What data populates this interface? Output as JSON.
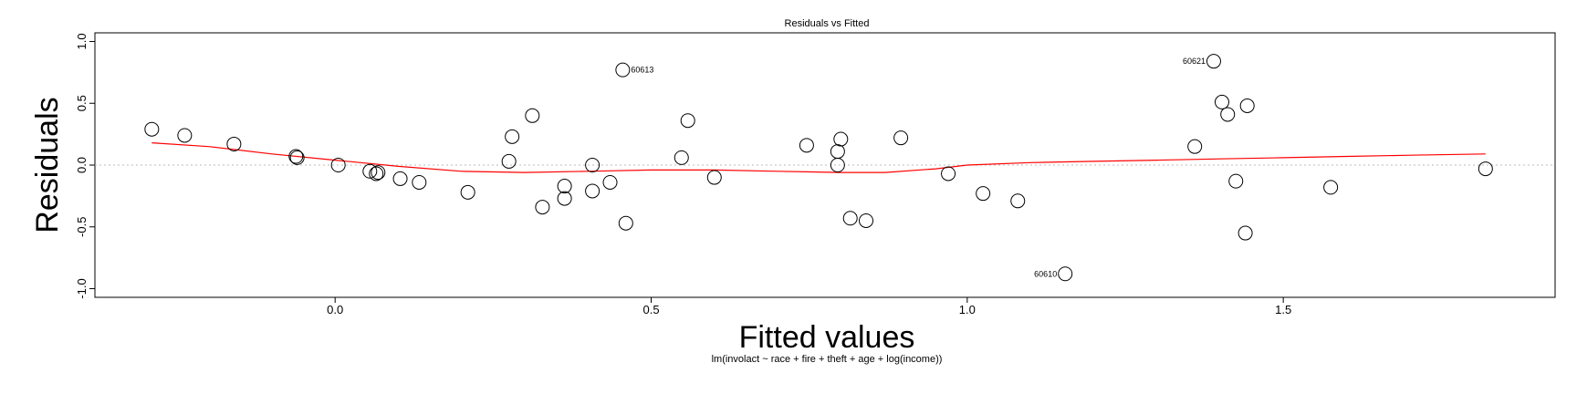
{
  "chart_data": {
    "type": "scatter",
    "title": "Residuals vs Fitted",
    "xlabel": "Fitted values",
    "ylabel": "Residuals",
    "subtitle": "lm(involact ~ race + fire + theft + age + log(income))",
    "xlim": [
      -0.38,
      1.93
    ],
    "ylim": [
      -1.07,
      1.07
    ],
    "x_ticks": [
      0.0,
      0.5,
      1.0,
      1.5
    ],
    "x_tick_labels": [
      "0.0",
      "0.5",
      "1.0",
      "1.5"
    ],
    "y_ticks": [
      -1.0,
      -0.5,
      0.0,
      0.5,
      1.0
    ],
    "y_tick_labels": [
      "-1.0",
      "-0.5",
      "0.0",
      "0.5",
      "1.0"
    ],
    "reference_line_y": 0,
    "grid": false,
    "legend": "none",
    "colors": {
      "points": "#000000",
      "smoother": "#ff0000",
      "reference": "#bbbbbb"
    },
    "points": [
      {
        "x": -0.29,
        "y": 0.29
      },
      {
        "x": -0.238,
        "y": 0.24
      },
      {
        "x": -0.16,
        "y": 0.17
      },
      {
        "x": -0.062,
        "y": 0.07
      },
      {
        "x": -0.06,
        "y": 0.06
      },
      {
        "x": 0.005,
        "y": 0.0
      },
      {
        "x": 0.055,
        "y": -0.05
      },
      {
        "x": 0.065,
        "y": -0.07
      },
      {
        "x": 0.068,
        "y": -0.06
      },
      {
        "x": 0.103,
        "y": -0.11
      },
      {
        "x": 0.133,
        "y": -0.14
      },
      {
        "x": 0.21,
        "y": -0.22
      },
      {
        "x": 0.275,
        "y": 0.03
      },
      {
        "x": 0.28,
        "y": 0.23
      },
      {
        "x": 0.312,
        "y": 0.4
      },
      {
        "x": 0.328,
        "y": -0.34
      },
      {
        "x": 0.363,
        "y": -0.17
      },
      {
        "x": 0.363,
        "y": -0.27
      },
      {
        "x": 0.407,
        "y": 0.0
      },
      {
        "x": 0.407,
        "y": -0.21
      },
      {
        "x": 0.435,
        "y": -0.14
      },
      {
        "x": 0.455,
        "y": 0.77
      },
      {
        "x": 0.46,
        "y": -0.47
      },
      {
        "x": 0.548,
        "y": 0.06
      },
      {
        "x": 0.558,
        "y": 0.36
      },
      {
        "x": 0.6,
        "y": -0.1
      },
      {
        "x": 0.746,
        "y": 0.16
      },
      {
        "x": 0.795,
        "y": 0.11
      },
      {
        "x": 0.795,
        "y": 0.0
      },
      {
        "x": 0.8,
        "y": 0.21
      },
      {
        "x": 0.815,
        "y": -0.43
      },
      {
        "x": 0.84,
        "y": -0.45
      },
      {
        "x": 0.895,
        "y": 0.22
      },
      {
        "x": 0.97,
        "y": -0.07
      },
      {
        "x": 1.025,
        "y": -0.23
      },
      {
        "x": 1.08,
        "y": -0.29
      },
      {
        "x": 1.155,
        "y": -0.88
      },
      {
        "x": 1.36,
        "y": 0.15
      },
      {
        "x": 1.39,
        "y": 0.84
      },
      {
        "x": 1.403,
        "y": 0.51
      },
      {
        "x": 1.412,
        "y": 0.41
      },
      {
        "x": 1.425,
        "y": -0.13
      },
      {
        "x": 1.44,
        "y": -0.55
      },
      {
        "x": 1.443,
        "y": 0.48
      },
      {
        "x": 1.575,
        "y": -0.18
      },
      {
        "x": 1.82,
        "y": -0.03
      }
    ],
    "annotations": [
      {
        "label": "60613",
        "x": 0.455,
        "y": 0.77,
        "side": "right"
      },
      {
        "label": "60621",
        "x": 1.39,
        "y": 0.84,
        "side": "left"
      },
      {
        "label": "60610",
        "x": 1.155,
        "y": -0.88,
        "side": "left"
      }
    ],
    "smoother": [
      [
        -0.29,
        0.18
      ],
      [
        -0.2,
        0.15
      ],
      [
        -0.1,
        0.09
      ],
      [
        0.0,
        0.04
      ],
      [
        0.1,
        -0.01
      ],
      [
        0.2,
        -0.05
      ],
      [
        0.3,
        -0.06
      ],
      [
        0.4,
        -0.05
      ],
      [
        0.5,
        -0.04
      ],
      [
        0.6,
        -0.04
      ],
      [
        0.7,
        -0.05
      ],
      [
        0.8,
        -0.06
      ],
      [
        0.87,
        -0.06
      ],
      [
        0.95,
        -0.03
      ],
      [
        1.0,
        0.0
      ],
      [
        1.1,
        0.02
      ],
      [
        1.2,
        0.03
      ],
      [
        1.3,
        0.04
      ],
      [
        1.4,
        0.05
      ],
      [
        1.5,
        0.06
      ],
      [
        1.6,
        0.07
      ],
      [
        1.7,
        0.08
      ],
      [
        1.82,
        0.09
      ]
    ]
  }
}
